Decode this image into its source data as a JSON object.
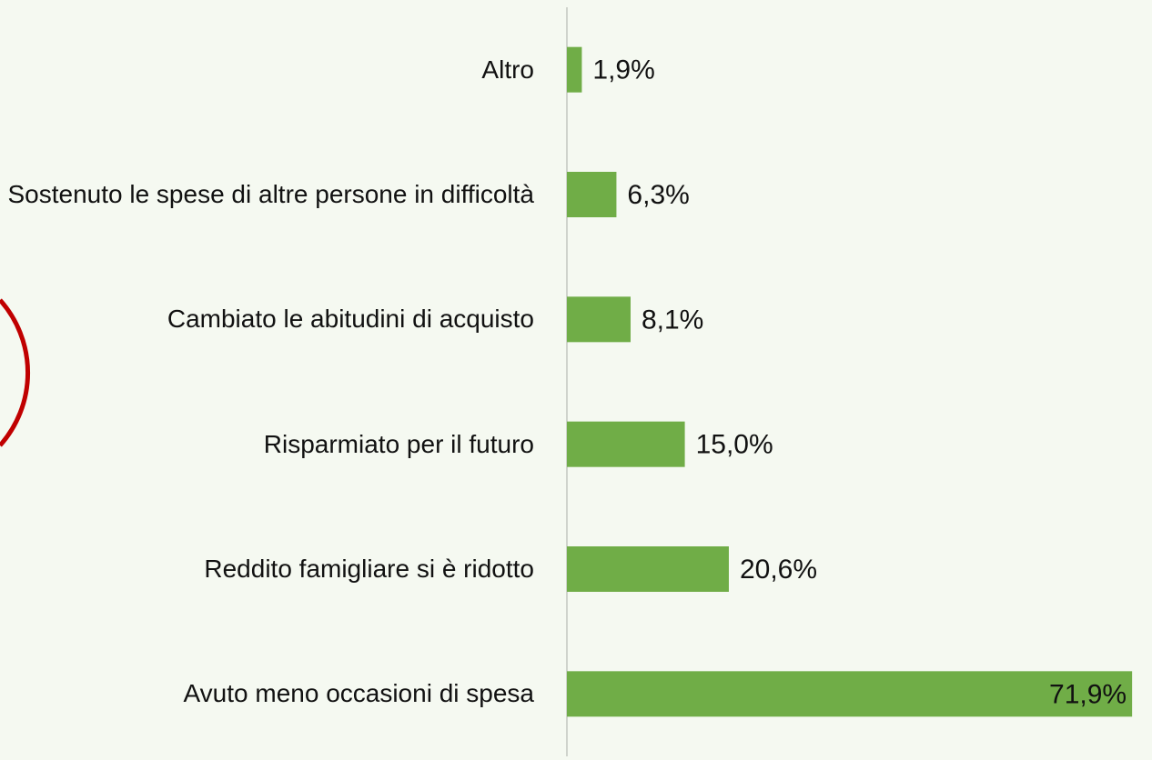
{
  "chart_data": {
    "type": "hbar",
    "categories": [
      "Altro",
      "Sostenuto le spese di altre persone in difficoltà",
      "Cambiato le abitudini di acquisto",
      "Risparmiato per il futuro",
      "Reddito famigliare si è ridotto",
      "Avuto meno occasioni di spesa"
    ],
    "values": [
      1.9,
      6.3,
      8.1,
      15.0,
      20.6,
      71.9
    ],
    "value_labels": [
      "1,9%",
      "6,3%",
      "8,1%",
      "15,0%",
      "20,6%",
      "71,9%"
    ],
    "color": "#70ad47",
    "xlim": [
      0,
      72
    ]
  }
}
